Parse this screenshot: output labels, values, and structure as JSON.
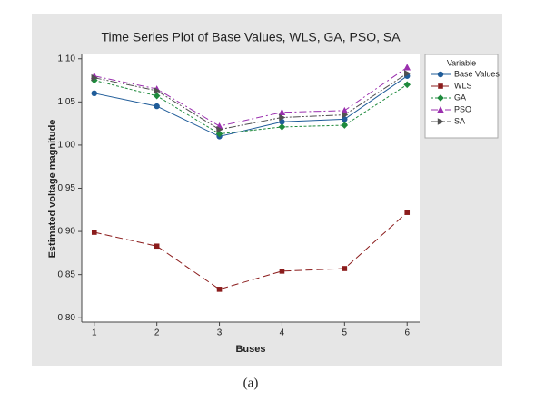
{
  "chart_data": {
    "type": "line",
    "title": "Time Series Plot of Base Values, WLS, GA, PSO, SA",
    "x_label": "Buses",
    "y_label": "Estimated voltage magnitude",
    "x": [
      1,
      2,
      3,
      4,
      5,
      6
    ],
    "xlim": [
      0.8,
      6.2
    ],
    "xticks": [
      1,
      2,
      3,
      4,
      5,
      6
    ],
    "ylim": [
      0.795,
      1.105
    ],
    "yticks": [
      {
        "value": 0.8,
        "label": "0.80"
      },
      {
        "value": 0.85,
        "label": "0.85"
      },
      {
        "value": 0.9,
        "label": "0.90"
      },
      {
        "value": 0.95,
        "label": "0.95"
      },
      {
        "value": 1.0,
        "label": "1.00"
      },
      {
        "value": 1.05,
        "label": "1.05"
      },
      {
        "value": 1.1,
        "label": "1.10"
      }
    ],
    "grid": false,
    "legend_title": "Variable",
    "legend_position": "right",
    "series": [
      {
        "name": "Base Values",
        "color": "#1f5c99",
        "values": [
          1.06,
          1.045,
          1.01,
          1.027,
          1.03,
          1.08
        ]
      },
      {
        "name": "WLS",
        "color": "#8b1c1c",
        "values": [
          0.899,
          0.883,
          0.833,
          0.854,
          0.857,
          0.922
        ]
      },
      {
        "name": "GA",
        "color": "#1e8a3c",
        "values": [
          1.075,
          1.057,
          1.013,
          1.021,
          1.023,
          1.07
        ]
      },
      {
        "name": "PSO",
        "color": "#9a2fae",
        "values": [
          1.08,
          1.065,
          1.022,
          1.038,
          1.04,
          1.09
        ]
      },
      {
        "name": "SA",
        "color": "#505050",
        "values": [
          1.078,
          1.063,
          1.018,
          1.032,
          1.035,
          1.083
        ]
      }
    ]
  },
  "caption": "(a)"
}
